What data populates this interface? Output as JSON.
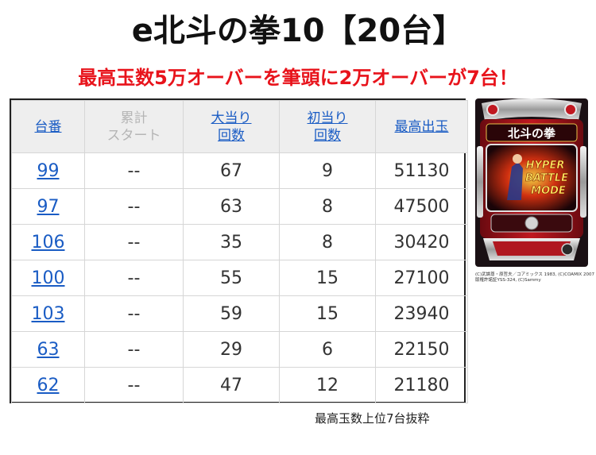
{
  "title": "e北斗の拳10【20台】",
  "subtitle": "最高玉数5万オーバーを筆頭に2万オーバーが7台！",
  "table": {
    "headers": {
      "col1": [
        "台番"
      ],
      "col2": [
        "累計",
        "スタート"
      ],
      "col3": [
        "大当り",
        "回数"
      ],
      "col4": [
        "初当り",
        "回数"
      ],
      "col5": [
        "最高出玉"
      ]
    },
    "rows": [
      {
        "unit": "99",
        "start": "--",
        "big": "67",
        "first": "9",
        "max": "51130"
      },
      {
        "unit": "97",
        "start": "--",
        "big": "63",
        "first": "8",
        "max": "47500"
      },
      {
        "unit": "106",
        "start": "--",
        "big": "35",
        "first": "8",
        "max": "30420"
      },
      {
        "unit": "100",
        "start": "--",
        "big": "55",
        "first": "15",
        "max": "27100"
      },
      {
        "unit": "103",
        "start": "--",
        "big": "59",
        "first": "15",
        "max": "23940"
      },
      {
        "unit": "63",
        "start": "--",
        "big": "29",
        "first": "6",
        "max": "22150"
      },
      {
        "unit": "62",
        "start": "--",
        "big": "47",
        "first": "12",
        "max": "21180"
      }
    ]
  },
  "image": {
    "logo_text": "北斗の拳",
    "banner_lines": [
      "HYPER",
      "BATTLE",
      "MODE"
    ],
    "caption": [
      "(C)武論尊・原哲夫／コアミックス 1983, (C)COAMIX 2007",
      "版権許諾証YSS-324, (C)Sammy"
    ]
  },
  "footnote": "最高玉数上位7台抜粋",
  "colors": {
    "accent": "#e8131b",
    "link": "#1a5cc4",
    "header_bg": "#eeeeee"
  }
}
